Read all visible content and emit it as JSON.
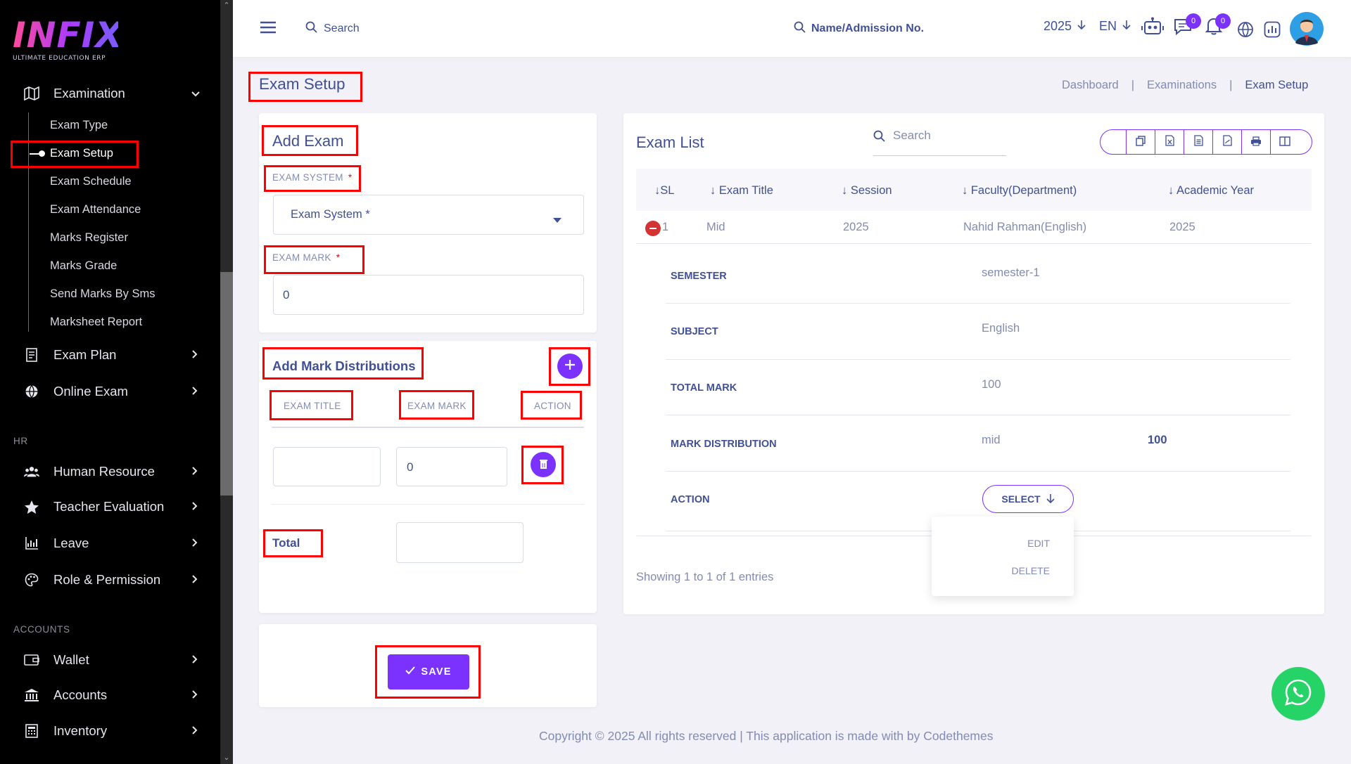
{
  "sidebar": {
    "logo_text": "INFIX",
    "logo_tagline": "ULTIMATE EDUCATION ERP",
    "examination_label": "Examination",
    "sub_items": [
      "Exam Type",
      "Exam Setup",
      "Exam Schedule",
      "Exam Attendance",
      "Marks Register",
      "Marks Grade",
      "Send Marks By Sms",
      "Marksheet Report"
    ],
    "exam_plan": "Exam Plan",
    "online_exam": "Online Exam",
    "section_hr": "HR",
    "human_resource": "Human Resource",
    "teacher_evaluation": "Teacher Evaluation",
    "leave": "Leave",
    "role_permission": "Role & Permission",
    "section_accounts": "ACCOUNTS",
    "wallet": "Wallet",
    "accounts": "Accounts",
    "inventory": "Inventory"
  },
  "topbar": {
    "search_label": "Search",
    "student_search_label": "Name/Admission No.",
    "year": "2025",
    "language": "EN",
    "messages_count": "0",
    "notifications_count": "0"
  },
  "page": {
    "title": "Exam Setup",
    "breadcrumb": [
      "Dashboard",
      "Examinations",
      "Exam Setup"
    ]
  },
  "add_exam": {
    "heading": "Add Exam",
    "exam_system_label": "EXAM SYSTEM",
    "exam_system_placeholder": "Exam System *",
    "exam_mark_label": "EXAM MARK",
    "exam_mark_value": "0",
    "required_mark": "*"
  },
  "mark_distributions": {
    "heading": "Add Mark Distributions",
    "col_exam_title": "EXAM TITLE",
    "col_exam_mark": "EXAM MARK",
    "col_action": "ACTION",
    "row_exam_title": "",
    "row_exam_mark": "0",
    "total_label": "Total",
    "total_value": ""
  },
  "save_button": "SAVE",
  "exam_list": {
    "heading": "Exam List",
    "search_placeholder": "Search",
    "columns": [
      "SL",
      "Exam Title",
      "Session",
      "Faculty(Department)",
      "Academic Year"
    ],
    "row": {
      "sl": "1",
      "exam_title": "Mid",
      "session": "2025",
      "faculty": "Nahid Rahman(English)",
      "academic_year": "2025"
    },
    "details": {
      "semester_label": "SEMESTER",
      "semester_value": "semester-1",
      "subject_label": "SUBJECT",
      "subject_value": "English",
      "total_mark_label": "TOTAL MARK",
      "total_mark_value": "100",
      "mark_distribution_label": "MARK DISTRIBUTION",
      "mark_distribution_title": "mid",
      "mark_distribution_value": "100",
      "action_label": "ACTION"
    },
    "select_button": "SELECT",
    "dropdown": [
      "EDIT",
      "DELETE"
    ],
    "showing": "Showing 1 to 1 of 1 entries"
  },
  "footer": "Copyright © 2025 All rights reserved | This application is made with by Codethemes",
  "colors": {
    "accent": "#7c32ff",
    "primary_text": "#415094",
    "muted_text": "#828bb2",
    "highlight": "#ff0000",
    "whatsapp": "#25d366"
  }
}
